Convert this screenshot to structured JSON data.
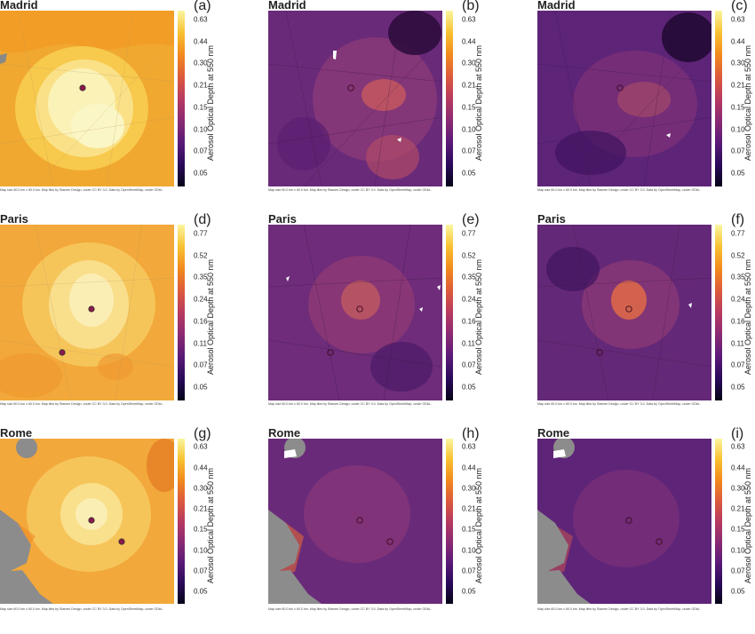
{
  "colorbar_label": "Aerosol Optical Depth at 550 nm",
  "credit_size": "Map size 60.0 km x 60.0 km.",
  "credit_tiles": "Map tiles by Stamen Design, under CC BY 3.0. Data by OpenStreetMap, under ODbL.",
  "palette": [
    "#050417",
    "#2a0a5a",
    "#5b1a78",
    "#8a2a73",
    "#b83a60",
    "#dd5a3b",
    "#f28a1c",
    "#f8c232",
    "#fbf59e"
  ],
  "panels": [
    {
      "id": "a",
      "city": "Madrid",
      "label": "(a)",
      "style": "smooth",
      "ticks": [
        "0.63",
        "0.44",
        "0.30",
        "0.21",
        "0.15",
        "0.10",
        "0.07",
        "0.05"
      ]
    },
    {
      "id": "b",
      "city": "Madrid",
      "label": "(b)",
      "style": "fine",
      "ticks": [
        "0.63",
        "0.44",
        "0.30",
        "0.21",
        "0.15",
        "0.10",
        "0.07",
        "0.05"
      ]
    },
    {
      "id": "c",
      "city": "Madrid",
      "label": "(c)",
      "style": "fine",
      "ticks": [
        "0.63",
        "0.44",
        "0.30",
        "0.21",
        "0.15",
        "0.10",
        "0.07",
        "0.05"
      ]
    },
    {
      "id": "d",
      "city": "Paris",
      "label": "(d)",
      "style": "smooth",
      "ticks": [
        "0.77",
        "0.52",
        "0.35",
        "0.24",
        "0.16",
        "0.11",
        "0.07",
        "0.05"
      ]
    },
    {
      "id": "e",
      "city": "Paris",
      "label": "(e)",
      "style": "fine",
      "ticks": [
        "0.77",
        "0.52",
        "0.35",
        "0.24",
        "0.16",
        "0.11",
        "0.07",
        "0.05"
      ]
    },
    {
      "id": "f",
      "city": "Paris",
      "label": "(f)",
      "style": "fine",
      "ticks": [
        "0.77",
        "0.52",
        "0.35",
        "0.24",
        "0.16",
        "0.11",
        "0.07",
        "0.05"
      ]
    },
    {
      "id": "g",
      "city": "Rome",
      "label": "(g)",
      "style": "smooth",
      "ticks": [
        "0.63",
        "0.44",
        "0.30",
        "0.21",
        "0.15",
        "0.10",
        "0.07",
        "0.05"
      ]
    },
    {
      "id": "h",
      "city": "Rome",
      "label": "(h)",
      "style": "fine",
      "ticks": [
        "0.63",
        "0.44",
        "0.30",
        "0.21",
        "0.15",
        "0.10",
        "0.07",
        "0.05"
      ]
    },
    {
      "id": "i",
      "city": "Rome",
      "label": "(i)",
      "style": "fine",
      "ticks": [
        "0.63",
        "0.44",
        "0.30",
        "0.21",
        "0.15",
        "0.10",
        "0.07",
        "0.05"
      ]
    }
  ]
}
